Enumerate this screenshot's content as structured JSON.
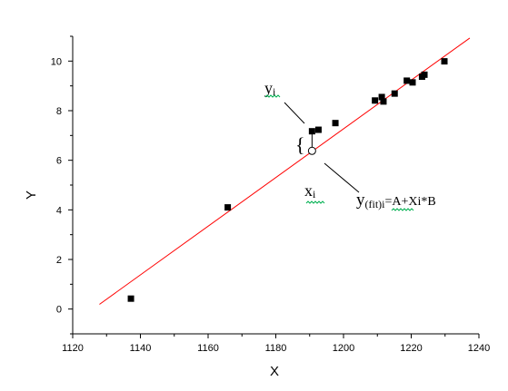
{
  "chart_data": {
    "type": "scatter",
    "title": "",
    "xlabel": "X",
    "ylabel": "Y",
    "xlim": [
      1120,
      1240
    ],
    "ylim": [
      -1,
      11
    ],
    "x_ticks": [
      1120,
      1140,
      1160,
      1180,
      1200,
      1220,
      1240
    ],
    "y_ticks": [
      0,
      2,
      4,
      6,
      8,
      10
    ],
    "x_tick_labels": [
      "1120",
      "1140",
      "1160",
      "1180",
      "1200",
      "1220",
      "1240"
    ],
    "y_tick_labels": [
      "0",
      "2",
      "4",
      "6",
      "8",
      "10"
    ],
    "grid": false,
    "legend": "none",
    "series": [
      {
        "kind": "points",
        "marker": "square",
        "color": "#000000",
        "x": [
          1137.2,
          1165.8,
          1190.7,
          1192.6,
          1197.6,
          1209.3,
          1211.3,
          1211.8,
          1215.1,
          1218.7,
          1220.4,
          1223.2,
          1223.9,
          1229.8
        ],
        "y": [
          0.42,
          4.1,
          7.17,
          7.23,
          7.5,
          8.41,
          8.55,
          8.37,
          8.69,
          9.21,
          9.14,
          9.37,
          9.45,
          9.99
        ]
      },
      {
        "kind": "fit-line",
        "color": "#ff0000",
        "x": [
          1127.9,
          1237.3
        ],
        "y": [
          0.19,
          10.93
        ]
      }
    ],
    "fitted_point": {
      "x": 1190.7,
      "y": 6.38,
      "marker": "open-circle"
    },
    "annotations": {
      "yi_text": "y",
      "yi_sub": "i",
      "xi_text": "x",
      "xi_sub": "i",
      "brace": "{",
      "fit_text_y": "y",
      "fit_sub": "(fit)i",
      "fit_rest": "=A+Xi*B"
    },
    "squiggle_color": "#00b050"
  }
}
